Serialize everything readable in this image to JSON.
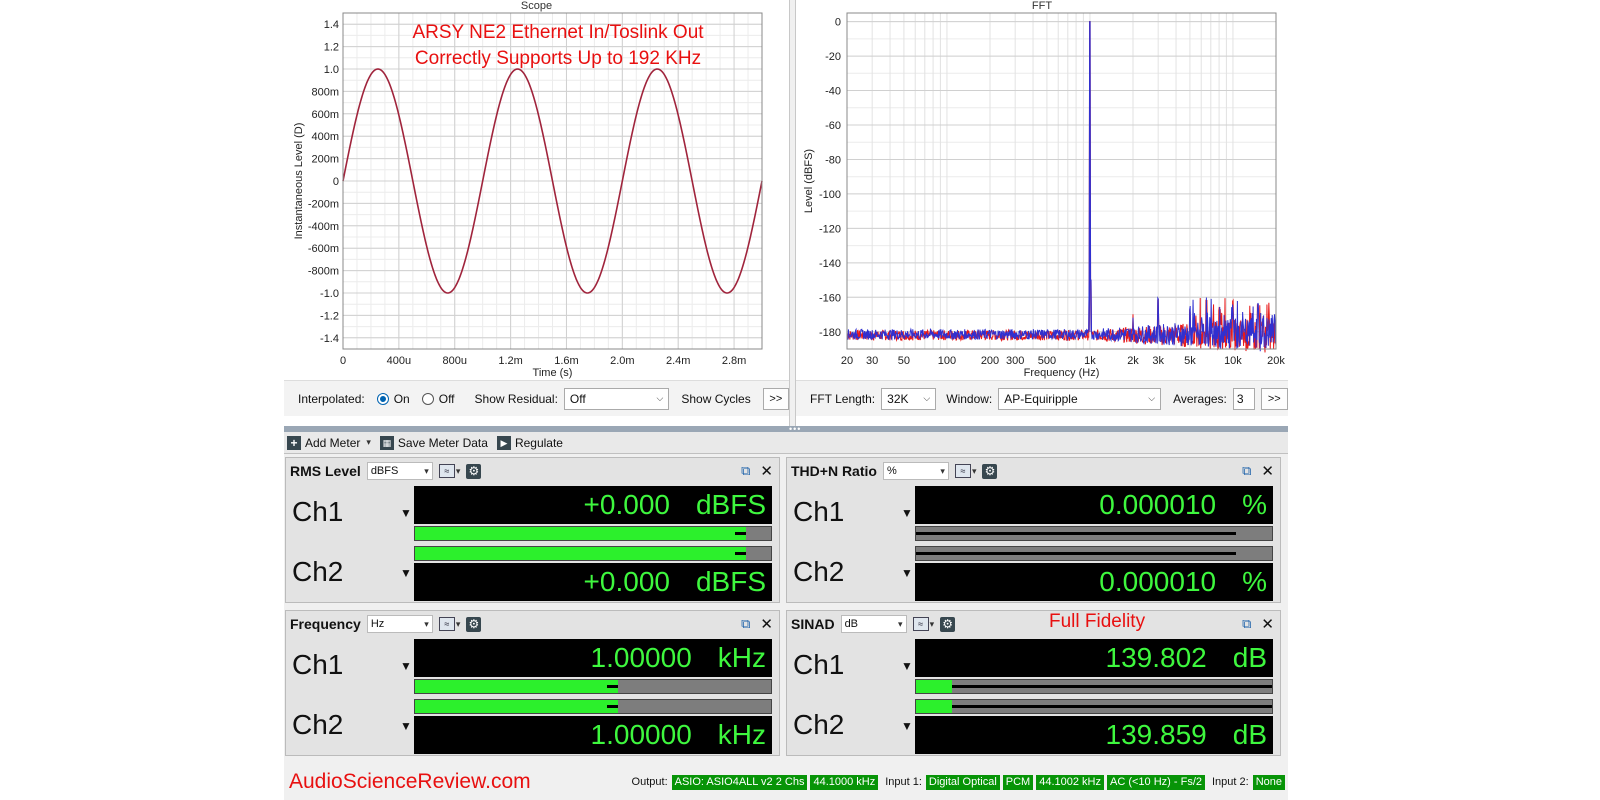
{
  "scope": {
    "title": "Scope",
    "annotation_line1": "ARSY NE2 Ethernet In/Toslink Out",
    "annotation_line2": "Correctly Supports Up to 192 KHz",
    "controls": {
      "interpolated_label": "Interpolated:",
      "on_label": "On",
      "off_label": "Off",
      "interpolated_value": "On",
      "show_residual_label": "Show Residual:",
      "show_residual_value": "Off",
      "show_cycles_label": "Show Cycles",
      "more_label": ">>"
    }
  },
  "fft": {
    "title": "FFT",
    "controls": {
      "fft_length_label": "FFT Length:",
      "fft_length_value": "32K",
      "window_label": "Window:",
      "window_value": "AP-Equiripple",
      "averages_label": "Averages:",
      "averages_value": "3",
      "more_label": ">>"
    }
  },
  "chart_data": [
    {
      "type": "line",
      "title": "Scope",
      "xlabel": "Time (s)",
      "ylabel": "Instantaneous Level (D)",
      "xlim": [
        0,
        0.003
      ],
      "ylim": [
        -1.5,
        1.5
      ],
      "x_ticks": [
        "0",
        "400u",
        "800u",
        "1.2m",
        "1.6m",
        "2.0m",
        "2.4m",
        "2.8m"
      ],
      "x_tick_values": [
        0,
        0.0004,
        0.0008,
        0.0012,
        0.0016,
        0.002,
        0.0024,
        0.0028
      ],
      "y_ticks": [
        "1.4",
        "1.2",
        "1.0",
        "800m",
        "600m",
        "400m",
        "200m",
        "0",
        "-200m",
        "-400m",
        "-600m",
        "-800m",
        "-1.0",
        "-1.2",
        "-1.4"
      ],
      "y_tick_values": [
        1.4,
        1.2,
        1.0,
        0.8,
        0.6,
        0.4,
        0.2,
        0,
        -0.2,
        -0.4,
        -0.6,
        -0.8,
        -1.0,
        -1.2,
        -1.4
      ],
      "series": [
        {
          "signal": "sine",
          "frequency_hz": 1000,
          "amplitude": 1.0,
          "color": "#a0243c"
        }
      ],
      "grid": true
    },
    {
      "type": "line",
      "title": "FFT",
      "xlabel": "Frequency (Hz)",
      "ylabel": "Level (dBFS)",
      "x_scale": "log",
      "xlim": [
        20,
        20000
      ],
      "ylim": [
        -190,
        5
      ],
      "x_ticks": [
        "20",
        "30",
        "50",
        "100",
        "200",
        "300",
        "500",
        "1k",
        "2k",
        "3k",
        "5k",
        "10k",
        "20k"
      ],
      "x_tick_values": [
        20,
        30,
        50,
        100,
        200,
        300,
        500,
        1000,
        2000,
        3000,
        5000,
        10000,
        20000
      ],
      "y_ticks": [
        "0",
        "-20",
        "-40",
        "-60",
        "-80",
        "-100",
        "-120",
        "-140",
        "-160",
        "-180"
      ],
      "y_tick_values": [
        0,
        -20,
        -40,
        -60,
        -80,
        -100,
        -120,
        -140,
        -160,
        -180
      ],
      "fundamental": {
        "frequency_hz": 1000,
        "level_dbfs": 0
      },
      "noise_floor_dbfs": -180,
      "spurs": [
        {
          "frequency_hz": 2000,
          "level_dbfs": -170
        },
        {
          "frequency_hz": 3000,
          "level_dbfs": -160
        },
        {
          "frequency_hz": 5000,
          "level_dbfs": -167
        },
        {
          "frequency_hz": 10000,
          "level_dbfs": -163
        },
        {
          "frequency_hz": 15000,
          "level_dbfs": -165
        }
      ],
      "series_colors": [
        "#e81a1a",
        "#3030d0"
      ],
      "grid": true
    }
  ],
  "toolbar": {
    "add_meter_label": "Add Meter",
    "save_meter_label": "Save Meter Data",
    "regulate_label": "Regulate"
  },
  "meters": {
    "rms": {
      "name": "RMS Level",
      "unit": "dBFS",
      "ch1_label": "Ch1",
      "ch2_label": "Ch2",
      "ch1_value": "+0.000",
      "ch2_value": "+0.000",
      "ch1_unit": "dBFS",
      "ch2_unit": "dBFS",
      "ch1_fraction": 0.93,
      "ch2_fraction": 0.93
    },
    "thdn": {
      "name": "THD+N Ratio",
      "unit": "%",
      "ch1_label": "Ch1",
      "ch2_label": "Ch2",
      "ch1_value": "0.000010",
      "ch2_value": "0.000010",
      "ch1_unit": "%",
      "ch2_unit": "%",
      "ch1_fraction": 0.0,
      "ch2_fraction": 0.0
    },
    "freq": {
      "name": "Frequency",
      "unit": "Hz",
      "ch1_label": "Ch1",
      "ch2_label": "Ch2",
      "ch1_value": "1.00000",
      "ch2_value": "1.00000",
      "ch1_unit": "kHz",
      "ch2_unit": "kHz",
      "ch1_fraction": 0.57,
      "ch2_fraction": 0.57
    },
    "sinad": {
      "name": "SINAD",
      "unit": "dB",
      "annotation": "Full Fidelity",
      "ch1_label": "Ch1",
      "ch2_label": "Ch2",
      "ch1_value": "139.802",
      "ch2_value": "139.859",
      "ch1_unit": "dB",
      "ch2_unit": "dB",
      "ch1_fraction": 0.1,
      "ch2_fraction": 0.1
    }
  },
  "statusbar": {
    "brand": "AudioScienceReview.com",
    "output_label": "Output:",
    "output_device": "ASIO: ASIO4ALL v2 2 Chs",
    "output_rate": "44.1000 kHz",
    "input1_label": "Input 1:",
    "input1_device": "Digital Optical",
    "input1_format": "PCM",
    "input1_rate": "44.1002 kHz",
    "input1_coupling": "AC (<10 Hz) - Fs/2",
    "input2_label": "Input 2:",
    "input2_device": "None"
  }
}
